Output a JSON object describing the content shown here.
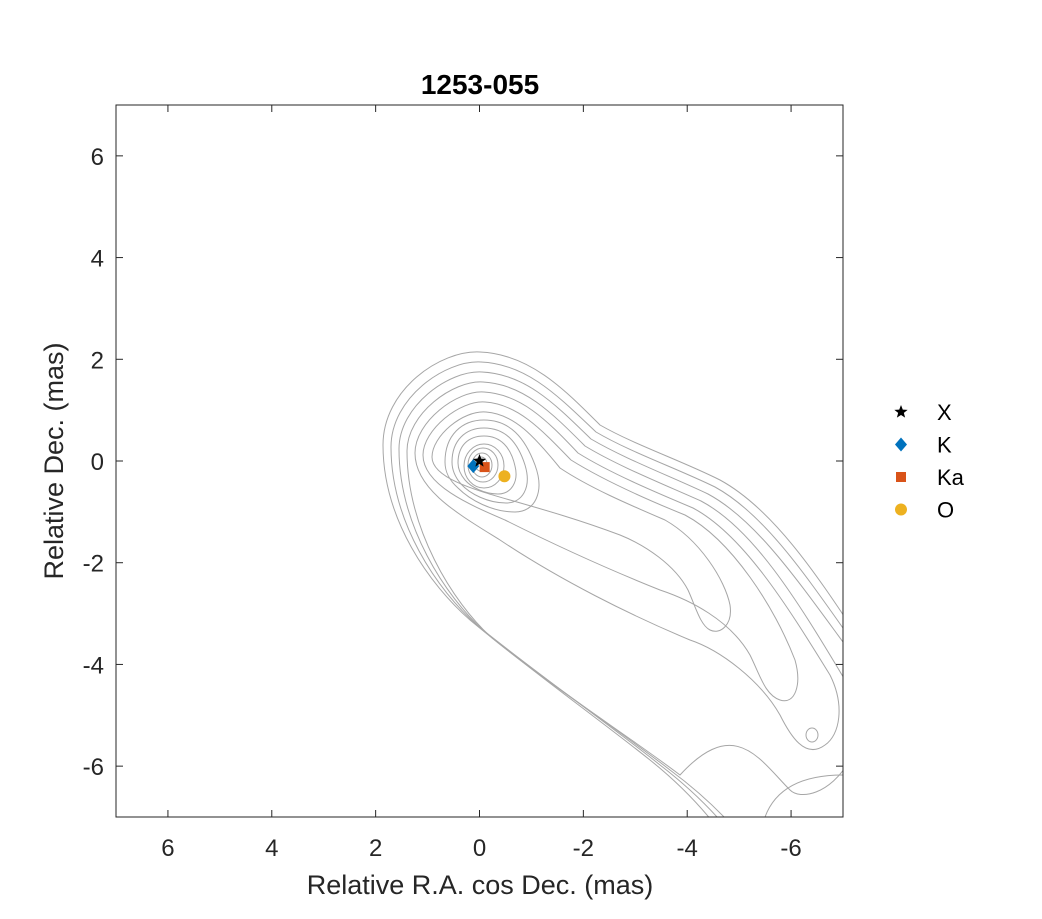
{
  "chart_data": {
    "type": "scatter",
    "title": "1253-055",
    "xlabel": "Relative R.A. cos Dec. (mas)",
    "ylabel": "Relative Dec. (mas)",
    "xlim": [
      7,
      -7
    ],
    "ylim": [
      -7,
      7
    ],
    "x_reversed": true,
    "xticks": [
      6,
      4,
      2,
      0,
      -2,
      -4,
      -6
    ],
    "yticks": [
      6,
      4,
      2,
      0,
      -2,
      -4,
      -6
    ],
    "xtick_labels": [
      "6",
      "4",
      "2",
      "0",
      "-2",
      "-4",
      "-6"
    ],
    "ytick_labels": [
      "6",
      "4",
      "2",
      "0",
      "-2",
      "-4",
      "-6"
    ],
    "grid": false,
    "legend_position": "outside-right",
    "contour_color": "#a6a6a6",
    "series": [
      {
        "name": "X",
        "marker": "star",
        "color": "#000000",
        "x": 0.0,
        "y": 0.0
      },
      {
        "name": "K",
        "marker": "diamond",
        "color": "#0072bd",
        "x": 0.12,
        "y": -0.1
      },
      {
        "name": "Ka",
        "marker": "square",
        "color": "#d95319",
        "x": -0.1,
        "y": -0.12
      },
      {
        "name": "O",
        "marker": "circle",
        "color": "#edb120",
        "x": -0.48,
        "y": -0.3
      }
    ]
  }
}
